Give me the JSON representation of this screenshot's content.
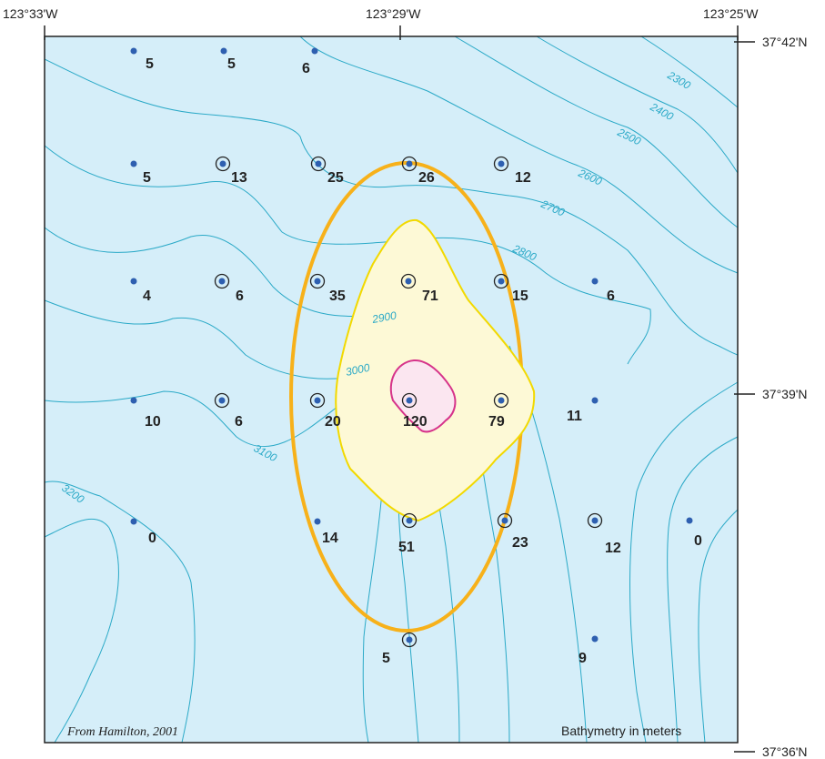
{
  "map": {
    "top_labels": [
      "123°33'W",
      "123°29'W",
      "123°25'W"
    ],
    "right_labels": [
      "37°42'N",
      "37°39'N",
      "37°36'N"
    ],
    "credit": "From Hamilton, 2001",
    "legend_text": "Bathymetry in meters",
    "contour_labels": [
      "2300",
      "2400",
      "2500",
      "2600",
      "2700",
      "2800",
      "2900",
      "3000",
      "3100",
      "3200"
    ],
    "colors": {
      "sea": "#d5eef9",
      "contour": "#2aa9c7",
      "inner_zone": "#fdf9d6",
      "inner_zone_stroke": "#f2d900",
      "ellipse": "#f7b11a",
      "core": "#fbe6f0",
      "core_stroke": "#d6338a",
      "station": "#2e5fb0"
    },
    "stations": [
      {
        "value": "5",
        "circled": false
      },
      {
        "value": "5",
        "circled": false
      },
      {
        "value": "6",
        "circled": false
      },
      {
        "value": "5",
        "circled": false
      },
      {
        "value": "13",
        "circled": true
      },
      {
        "value": "25",
        "circled": true
      },
      {
        "value": "26",
        "circled": true
      },
      {
        "value": "12",
        "circled": true
      },
      {
        "value": "4",
        "circled": false
      },
      {
        "value": "6",
        "circled": true
      },
      {
        "value": "35",
        "circled": true
      },
      {
        "value": "71",
        "circled": true
      },
      {
        "value": "15",
        "circled": true
      },
      {
        "value": "6",
        "circled": false
      },
      {
        "value": "10",
        "circled": false
      },
      {
        "value": "6",
        "circled": true
      },
      {
        "value": "20",
        "circled": true
      },
      {
        "value": "120",
        "circled": true
      },
      {
        "value": "79",
        "circled": true
      },
      {
        "value": "11",
        "circled": false
      },
      {
        "value": "0",
        "circled": false
      },
      {
        "value": "14",
        "circled": false
      },
      {
        "value": "51",
        "circled": true
      },
      {
        "value": "23",
        "circled": true
      },
      {
        "value": "12",
        "circled": true
      },
      {
        "value": "0",
        "circled": false
      },
      {
        "value": "5",
        "circled": true
      },
      {
        "value": "9",
        "circled": false
      }
    ]
  }
}
